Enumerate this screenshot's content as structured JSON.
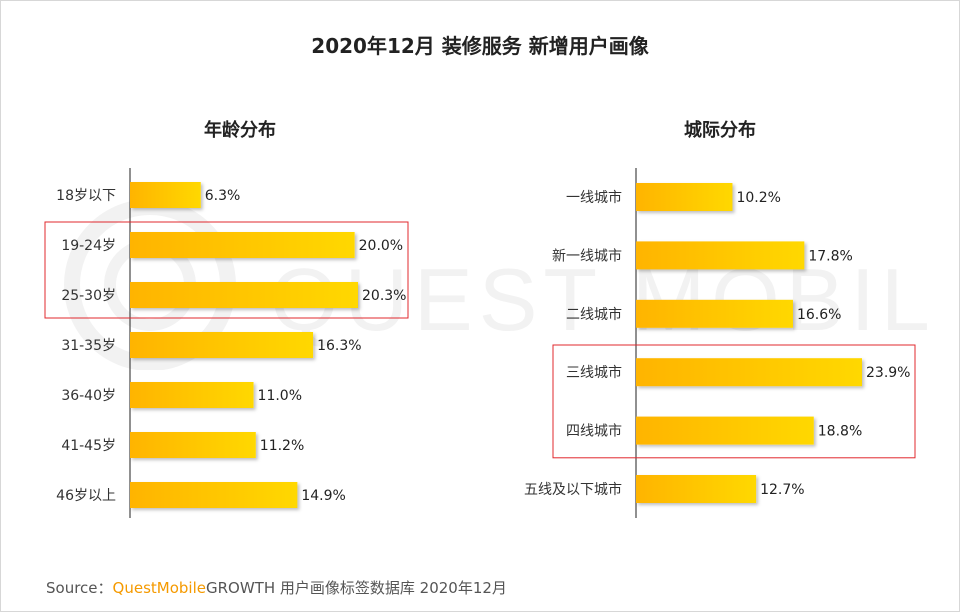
{
  "title": "2020年12月 装修服务 新增用户画像",
  "watermark": "QUEST MOBILE",
  "colors": {
    "bar_start": "#ffb400",
    "bar_end": "#ffd800",
    "highlight_box": "#e0282e",
    "axis": "#222222",
    "brand": "#f59a00"
  },
  "source": {
    "prefix": "Source：",
    "brand": "QuestMobile",
    "rest": "GROWTH 用户画像标签数据库 2020年12月"
  },
  "chart_data": [
    {
      "type": "bar",
      "orientation": "horizontal",
      "title": "年龄分布",
      "categories": [
        "18岁以下",
        "19-24岁",
        "25-30岁",
        "31-35岁",
        "36-40岁",
        "41-45岁",
        "46岁以上"
      ],
      "values": [
        6.3,
        20.0,
        20.3,
        16.3,
        11.0,
        11.2,
        14.9
      ],
      "value_labels": [
        "6.3%",
        "20.0%",
        "20.3%",
        "16.3%",
        "11.0%",
        "11.2%",
        "14.9%"
      ],
      "highlighted": [
        "19-24岁",
        "25-30岁"
      ],
      "unit": "%",
      "xlim": [
        0,
        20.3
      ]
    },
    {
      "type": "bar",
      "orientation": "horizontal",
      "title": "城际分布",
      "categories": [
        "一线城市",
        "新一线城市",
        "二线城市",
        "三线城市",
        "四线城市",
        "五线及以下城市"
      ],
      "values": [
        10.2,
        17.8,
        16.6,
        23.9,
        18.8,
        12.7
      ],
      "value_labels": [
        "10.2%",
        "17.8%",
        "16.6%",
        "23.9%",
        "18.8%",
        "12.7%"
      ],
      "highlighted": [
        "三线城市",
        "四线城市"
      ],
      "unit": "%",
      "xlim": [
        0,
        23.9
      ]
    }
  ]
}
